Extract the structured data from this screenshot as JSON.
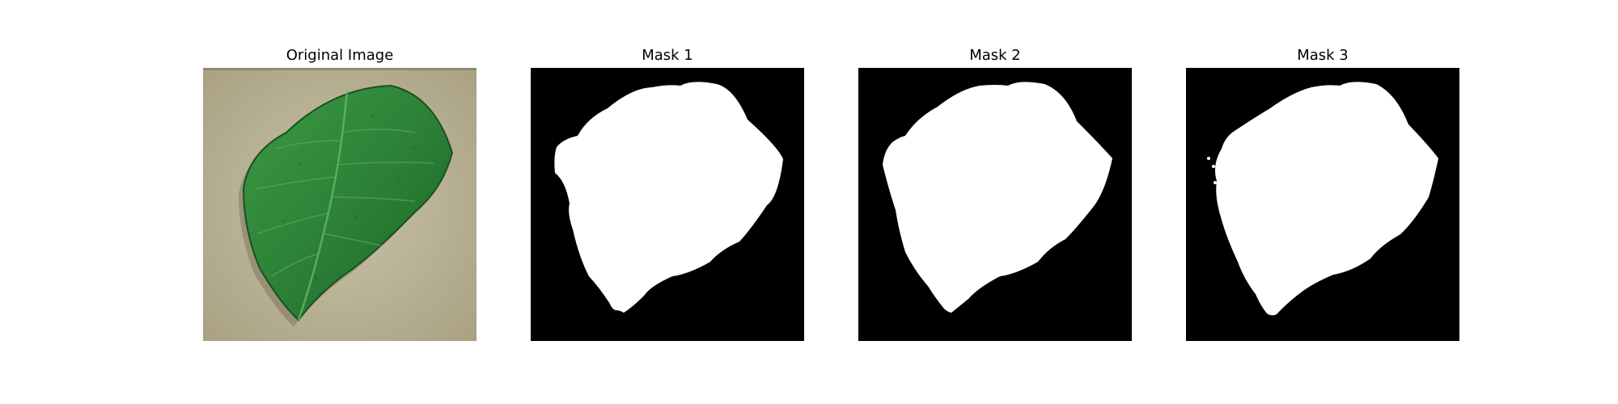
{
  "panels": [
    {
      "title": "Original Image",
      "kind": "photo",
      "description": "green-leaf-photo"
    },
    {
      "title": "Mask 1",
      "kind": "mask"
    },
    {
      "title": "Mask 2",
      "kind": "mask"
    },
    {
      "title": "Mask 3",
      "kind": "mask"
    }
  ],
  "colors": {
    "background": "#ffffff",
    "mask_background": "#000000",
    "mask_foreground": "#ffffff",
    "photo_background": "#b9b092",
    "leaf_dark": "#1f6a2a",
    "leaf_mid": "#2f8a3a",
    "leaf_light": "#4aa653"
  }
}
